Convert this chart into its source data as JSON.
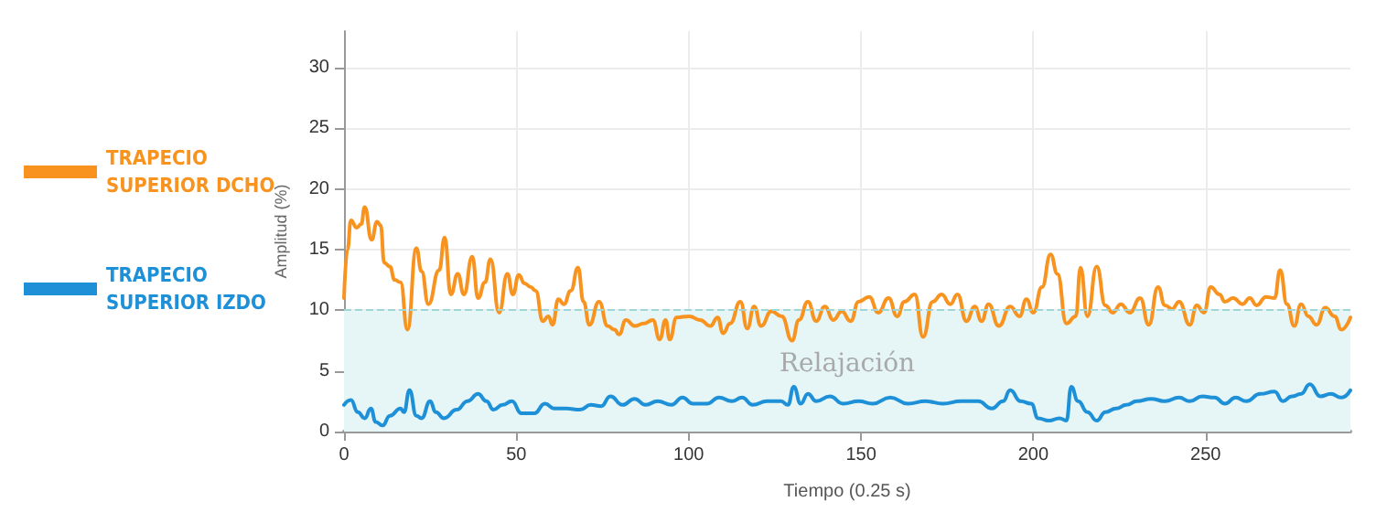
{
  "chart_data": {
    "type": "line",
    "xlabel": "Tiempo (0.25 s)",
    "ylabel": "Amplitud (%)",
    "xlim": [
      0,
      292
    ],
    "xticks": [
      0,
      50,
      100,
      150,
      200,
      250
    ],
    "ylim": [
      0,
      33
    ],
    "yticks": [
      0,
      5,
      10,
      15,
      20,
      25,
      30
    ],
    "grid": true,
    "legend": "left",
    "marker": "none",
    "line_style": "solid",
    "bands": [
      {
        "axis": "y",
        "from": 0,
        "to": 10,
        "label": "Relajación",
        "color": "#e6f6f7"
      }
    ],
    "ref_lines": [
      {
        "axis": "y",
        "value": 10,
        "color": "#9fd6d8",
        "line_style": "dashed"
      }
    ],
    "series": [
      {
        "name": "TRAPECIO SUPERIOR DCHO",
        "color": "#f7931e",
        "x": [
          0,
          1,
          2,
          3.7,
          5,
          6,
          8,
          9.6,
          10.6,
          11.7,
          13.3,
          14.7,
          16.4,
          18.4,
          21,
          22.5,
          24.5,
          27.6,
          29.2,
          31,
          33,
          34.8,
          37.2,
          38.9,
          40.9,
          42.5,
          45,
          47.4,
          49,
          50.7,
          52.4,
          54.2,
          55.6,
          57.7,
          59.3,
          60.5,
          62.2,
          63.8,
          65.8,
          67.9,
          69.5,
          71.2,
          74,
          76.5,
          78.5,
          79.8,
          81.8,
          84.3,
          87,
          89.6,
          91.6,
          93.3,
          94.5,
          96.5,
          100.2,
          103.3,
          106.3,
          108.4,
          110,
          112,
          115,
          117,
          119,
          121,
          124,
          127,
          130,
          132,
          134.6,
          137,
          139.5,
          142,
          144.4,
          147,
          149.3,
          152.4,
          155,
          158,
          160.5,
          162.6,
          165.6,
          168,
          170.8,
          173.4,
          175.9,
          178,
          180.6,
          183,
          185,
          187,
          190,
          193.3,
          196,
          198,
          200,
          202.5,
          205,
          207,
          209.6,
          212.3,
          213.7,
          215.7,
          218.4,
          220.9,
          223,
          225.4,
          228,
          231,
          233.5,
          236.2,
          238.2,
          240.3,
          242.3,
          245.4,
          247.4,
          249.5,
          251.5,
          254,
          255.6,
          258,
          260.7,
          262.8,
          264.8,
          267.5,
          270,
          271.6,
          273.6,
          275.7,
          277.7,
          279.8,
          282.2,
          284.7,
          287.4,
          289.4,
          292
        ],
        "values": [
          11,
          15,
          17.4,
          16.8,
          17.1,
          18.5,
          15.8,
          17.3,
          17,
          13.9,
          13.6,
          12.5,
          12.3,
          8.4,
          15.1,
          13.2,
          10.5,
          13.3,
          16,
          11.3,
          13,
          11.3,
          14.4,
          11,
          12.3,
          14.2,
          9.8,
          13,
          11.3,
          12.9,
          12.2,
          11.9,
          11.6,
          9.1,
          9.5,
          8.8,
          10.9,
          10.5,
          11.6,
          13.5,
          10.7,
          8.8,
          10.7,
          8.7,
          8.4,
          8,
          9.2,
          8.7,
          8.9,
          9.2,
          7.6,
          9.2,
          7.6,
          9.4,
          9.5,
          9.2,
          8.7,
          9.4,
          8.1,
          8.9,
          10.7,
          8.5,
          10.3,
          8.7,
          9.9,
          9.5,
          7.5,
          9.2,
          10.7,
          9.1,
          10.3,
          9.2,
          9.9,
          9.1,
          10.7,
          11.1,
          9.8,
          11,
          9.5,
          10.7,
          11.3,
          7.8,
          10.7,
          11.3,
          10.5,
          11.3,
          9.1,
          10.3,
          9.1,
          10.5,
          8.7,
          10.3,
          9.5,
          10.9,
          9.8,
          11.9,
          14.6,
          13,
          8.9,
          9.5,
          13.5,
          9.5,
          13.6,
          10.4,
          9.8,
          10.5,
          9.8,
          11,
          8.8,
          11.9,
          10.4,
          10.1,
          10.7,
          8.8,
          10.4,
          9.8,
          11.9,
          11.3,
          10.7,
          11,
          10.5,
          11,
          10.4,
          11.1,
          11,
          13.3,
          10.5,
          8.7,
          10.5,
          9.5,
          8.8,
          10.2,
          9.5,
          8.4,
          9.4
        ]
      },
      {
        "name": "TRAPECIO SUPERIOR IZDO",
        "color": "#1e90d8",
        "x": [
          0,
          2,
          4,
          6,
          7.8,
          9.2,
          11.2,
          13.3,
          16.4,
          17.4,
          19,
          21,
          22.5,
          25,
          26.6,
          29,
          32.7,
          35.8,
          38.9,
          41.3,
          43.4,
          46,
          48.7,
          51.5,
          55.2,
          58.3,
          61,
          64.4,
          68.5,
          71.6,
          74.6,
          77.3,
          80.8,
          84.3,
          87.5,
          91,
          95,
          98.2,
          101.2,
          105.3,
          108.8,
          112.5,
          115.5,
          118.6,
          122.7,
          126.8,
          128.8,
          130.5,
          132.5,
          134.6,
          137,
          141,
          144.8,
          149.3,
          153.4,
          158.5,
          163.6,
          168.7,
          173.8,
          179,
          184,
          188,
          191.2,
          193.3,
          196.3,
          199.4,
          201.4,
          204.5,
          207.6,
          209.6,
          211,
          213,
          215.7,
          218.4,
          220.9,
          224,
          227,
          230,
          234.2,
          238.2,
          242.3,
          245.4,
          249,
          252.6,
          255.6,
          258.7,
          261.8,
          265.8,
          270,
          272.4,
          275,
          277.7,
          280.2,
          283.3,
          286.3,
          289.4,
          292
        ],
        "values": [
          2.2,
          2.6,
          1.6,
          1.1,
          1.9,
          0.8,
          0.5,
          1.3,
          1.9,
          1.6,
          3.4,
          1.3,
          1.1,
          2.5,
          1.6,
          1.1,
          1.8,
          2.5,
          3.1,
          2.5,
          1.8,
          2.2,
          2.5,
          1.5,
          1.5,
          2.3,
          1.9,
          1.9,
          1.8,
          2.2,
          2.1,
          2.9,
          2.2,
          2.7,
          2.2,
          2.5,
          2.2,
          2.8,
          2.3,
          2.3,
          2.8,
          2.5,
          2.8,
          2.2,
          2.5,
          2.5,
          2.2,
          3.7,
          2.3,
          3.1,
          2.5,
          2.9,
          2.3,
          2.5,
          2.3,
          2.8,
          2.3,
          2.5,
          2.3,
          2.5,
          2.5,
          1.9,
          2.5,
          3.4,
          2.5,
          2.3,
          1.1,
          0.9,
          1.1,
          0.9,
          3.7,
          2.5,
          1.6,
          0.9,
          1.6,
          1.9,
          2.2,
          2.5,
          2.7,
          2.5,
          2.8,
          2.5,
          2.9,
          2.8,
          2.3,
          2.8,
          2.5,
          3.1,
          3.3,
          2.5,
          2.9,
          3.1,
          3.9,
          2.9,
          3.1,
          2.8,
          3.4
        ]
      }
    ]
  }
}
